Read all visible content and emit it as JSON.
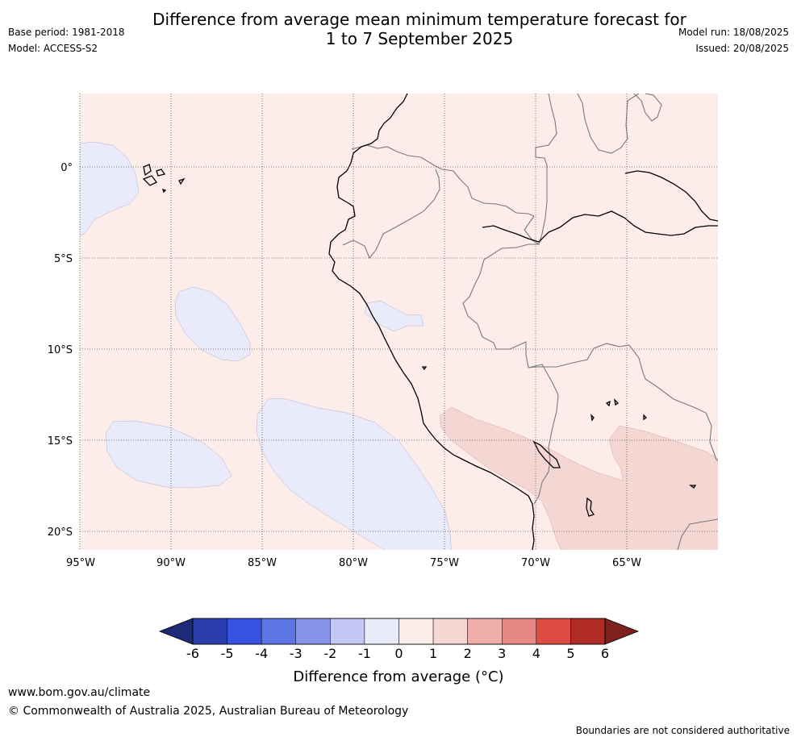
{
  "header": {
    "title_line1": "Difference from average mean minimum temperature forecast for",
    "title_line2": "1 to 7 September 2025",
    "base_period": "Base period: 1981-2018",
    "model": "Model: ACCESS-S2",
    "model_run": "Model run: 18/08/2025",
    "issued": "Issued: 20/08/2025"
  },
  "map": {
    "x_ticks": [
      "95°W",
      "90°W",
      "85°W",
      "80°W",
      "75°W",
      "70°W",
      "65°W"
    ],
    "y_ticks": [
      "0°",
      "5°S",
      "10°S",
      "15°S",
      "20°S"
    ],
    "background_color": "#fcecea",
    "colors": {
      "neg1_0": "#e9ebfb",
      "pos0_1": "#fcecea",
      "pos1_2": "#f4d6d3"
    },
    "gridlines": true
  },
  "colorbar": {
    "label": "Difference from average (°C)",
    "ticks": [
      "-6",
      "-5",
      "-4",
      "-3",
      "-2",
      "-1",
      "0",
      "1",
      "2",
      "3",
      "4",
      "5",
      "6"
    ],
    "under_color": "#1c2a78",
    "over_color": "#7d211c",
    "colors": [
      "#2a3fad",
      "#3552e0",
      "#5d75e5",
      "#8694ea",
      "#c3c8f4",
      "#e9ebfb",
      "#fcecea",
      "#f4d6d3",
      "#eeaea9",
      "#e78982",
      "#dc4c40",
      "#b02b23"
    ]
  },
  "footer": {
    "website": "www.bom.gov.au/climate",
    "copyright": "© Commonwealth of Australia 2025, Australian Bureau of Meteorology",
    "disclaimer": "Boundaries are not considered authoritative"
  }
}
